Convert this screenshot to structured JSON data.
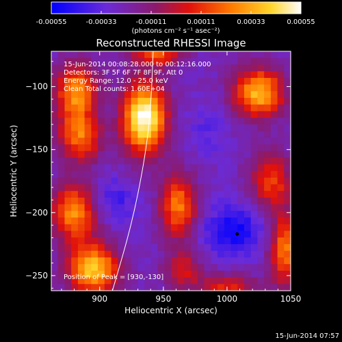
{
  "chart_data": {
    "type": "heatmap",
    "title": "Reconstructed RHESSI Image",
    "xlabel": "Heliocentric X (arcsec)",
    "ylabel": "Heliocentric Y (arcsec)",
    "xlim": [
      862,
      1050
    ],
    "ylim": [
      -262,
      -72
    ],
    "x_ticks": [
      {
        "value": 900,
        "label": "900"
      },
      {
        "value": 950,
        "label": "950"
      },
      {
        "value": 1000,
        "label": "1000"
      },
      {
        "value": 1050,
        "label": "1050"
      }
    ],
    "y_ticks": [
      {
        "value": -100,
        "label": "−100"
      },
      {
        "value": -150,
        "label": "−150"
      },
      {
        "value": -200,
        "label": "−200"
      },
      {
        "value": -250,
        "label": "−250"
      }
    ],
    "colorbar": {
      "ticks": [
        "-0.00055",
        "-0.00033",
        "-0.00011",
        "0.00011",
        "0.00033",
        "0.00055"
      ],
      "units_label": "(photons cm⁻² s⁻¹ asec⁻²)",
      "range": [
        -0.00055,
        0.00055
      ],
      "colors": [
        "#0000ff",
        "#6a2bd8",
        "#8c1a6a",
        "#e0100c",
        "#ff7a00",
        "#ffd52a",
        "#ffffff"
      ]
    },
    "annotations": [
      "15-Jun-2014 00:08:28.000 to 00:12:16.000",
      "Detectors: 3F 5F 6F 7F 8F 9F, Att 0",
      "Energy Range: 12.0 - 25.0 keV",
      "Clean    Total counts: 1.60E+04"
    ],
    "peak_label": "Position of Peak = [930,-130]",
    "peak": [
      930,
      -130
    ],
    "limb_curve": [
      [
        910,
        -262
      ],
      [
        925,
        -210
      ],
      [
        935,
        -160
      ],
      [
        940,
        -120
      ],
      [
        942,
        -72
      ]
    ],
    "marker": [
      1008,
      -217
    ],
    "hotspots": [
      {
        "x": 935,
        "y": -125,
        "sx": 12,
        "sy": 20,
        "amp": 1.0
      },
      {
        "x": 1025,
        "y": -105,
        "sx": 14,
        "sy": 14,
        "amp": 0.75
      },
      {
        "x": 882,
        "y": -105,
        "sx": 12,
        "sy": 16,
        "amp": 0.65
      },
      {
        "x": 885,
        "y": -140,
        "sx": 12,
        "sy": 14,
        "amp": 0.55
      },
      {
        "x": 880,
        "y": -200,
        "sx": 12,
        "sy": 16,
        "amp": 0.65
      },
      {
        "x": 895,
        "y": -245,
        "sx": 14,
        "sy": 14,
        "amp": 0.8
      },
      {
        "x": 962,
        "y": -195,
        "sx": 10,
        "sy": 18,
        "amp": 0.6
      },
      {
        "x": 1035,
        "y": -175,
        "sx": 12,
        "sy": 16,
        "amp": 0.45
      },
      {
        "x": 1045,
        "y": -230,
        "sx": 8,
        "sy": 20,
        "amp": 0.6
      },
      {
        "x": 1000,
        "y": -260,
        "sx": 18,
        "sy": 8,
        "amp": 0.4
      },
      {
        "x": 965,
        "y": -245,
        "sx": 10,
        "sy": 10,
        "amp": 0.35
      },
      {
        "x": 945,
        "y": -75,
        "sx": 14,
        "sy": 6,
        "amp": 0.5
      }
    ],
    "coldspots": [
      {
        "x": 1005,
        "y": -215,
        "sx": 16,
        "sy": 14,
        "amp": 0.9
      },
      {
        "x": 912,
        "y": -190,
        "sx": 12,
        "sy": 12,
        "amp": 0.5
      },
      {
        "x": 985,
        "y": -135,
        "sx": 12,
        "sy": 16,
        "amp": 0.3
      },
      {
        "x": 900,
        "y": -120,
        "sx": 10,
        "sy": 10,
        "amp": 0.25
      }
    ]
  },
  "footer": {
    "timestamp": "15-Jun-2014 07:57"
  }
}
